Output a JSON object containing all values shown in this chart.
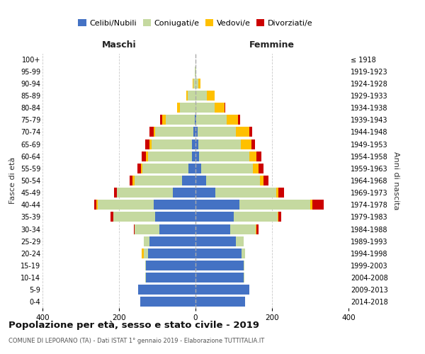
{
  "age_groups": [
    "0-4",
    "5-9",
    "10-14",
    "15-19",
    "20-24",
    "25-29",
    "30-34",
    "35-39",
    "40-44",
    "45-49",
    "50-54",
    "55-59",
    "60-64",
    "65-69",
    "70-74",
    "75-79",
    "80-84",
    "85-89",
    "90-94",
    "95-99",
    "100+"
  ],
  "birth_years": [
    "2014-2018",
    "2009-2013",
    "2004-2008",
    "1999-2003",
    "1994-1998",
    "1989-1993",
    "1984-1988",
    "1979-1983",
    "1974-1978",
    "1969-1973",
    "1964-1968",
    "1959-1963",
    "1954-1958",
    "1949-1953",
    "1944-1948",
    "1939-1943",
    "1934-1938",
    "1929-1933",
    "1924-1928",
    "1919-1923",
    "≤ 1918"
  ],
  "maschi": {
    "celibi": [
      145,
      150,
      130,
      130,
      125,
      120,
      95,
      105,
      110,
      60,
      35,
      18,
      10,
      10,
      5,
      2,
      0,
      0,
      0,
      0,
      0
    ],
    "coniugati": [
      0,
      0,
      2,
      2,
      10,
      15,
      65,
      110,
      145,
      145,
      125,
      120,
      115,
      105,
      100,
      75,
      40,
      20,
      5,
      1,
      0
    ],
    "vedovi": [
      0,
      0,
      0,
      0,
      5,
      0,
      0,
      0,
      5,
      0,
      5,
      5,
      5,
      5,
      5,
      10,
      8,
      5,
      2,
      0,
      0
    ],
    "divorziati": [
      0,
      0,
      0,
      0,
      0,
      0,
      2,
      8,
      5,
      8,
      8,
      8,
      10,
      12,
      10,
      5,
      0,
      0,
      0,
      0,
      0
    ]
  },
  "femmine": {
    "nubili": [
      130,
      140,
      125,
      125,
      120,
      105,
      90,
      100,
      115,
      52,
      28,
      15,
      10,
      8,
      5,
      2,
      0,
      0,
      0,
      0,
      0
    ],
    "coniugate": [
      0,
      0,
      2,
      2,
      10,
      20,
      68,
      115,
      185,
      160,
      140,
      135,
      130,
      110,
      100,
      80,
      50,
      30,
      8,
      1,
      0
    ],
    "vedove": [
      0,
      0,
      0,
      0,
      0,
      0,
      2,
      2,
      5,
      5,
      10,
      15,
      20,
      28,
      35,
      30,
      25,
      20,
      5,
      1,
      0
    ],
    "divorziate": [
      0,
      0,
      0,
      0,
      0,
      0,
      5,
      8,
      30,
      15,
      12,
      12,
      12,
      10,
      8,
      5,
      2,
      0,
      0,
      0,
      0
    ]
  },
  "colors": {
    "celibi": "#4472c4",
    "coniugati": "#c5d9a0",
    "vedovi": "#ffc000",
    "divorziati": "#cc0000"
  },
  "xlim": 400,
  "title": "Popolazione per età, sesso e stato civile - 2019",
  "subtitle": "COMUNE DI LEPORANO (TA) - Dati ISTAT 1° gennaio 2019 - Elaborazione TUTTITALIA.IT",
  "ylabel_left": "Fasce di età",
  "ylabel_right": "Anni di nascita",
  "xlabel_left": "Maschi",
  "xlabel_right": "Femmine",
  "bg_color": "#ffffff",
  "grid_color": "#bbbbbb"
}
